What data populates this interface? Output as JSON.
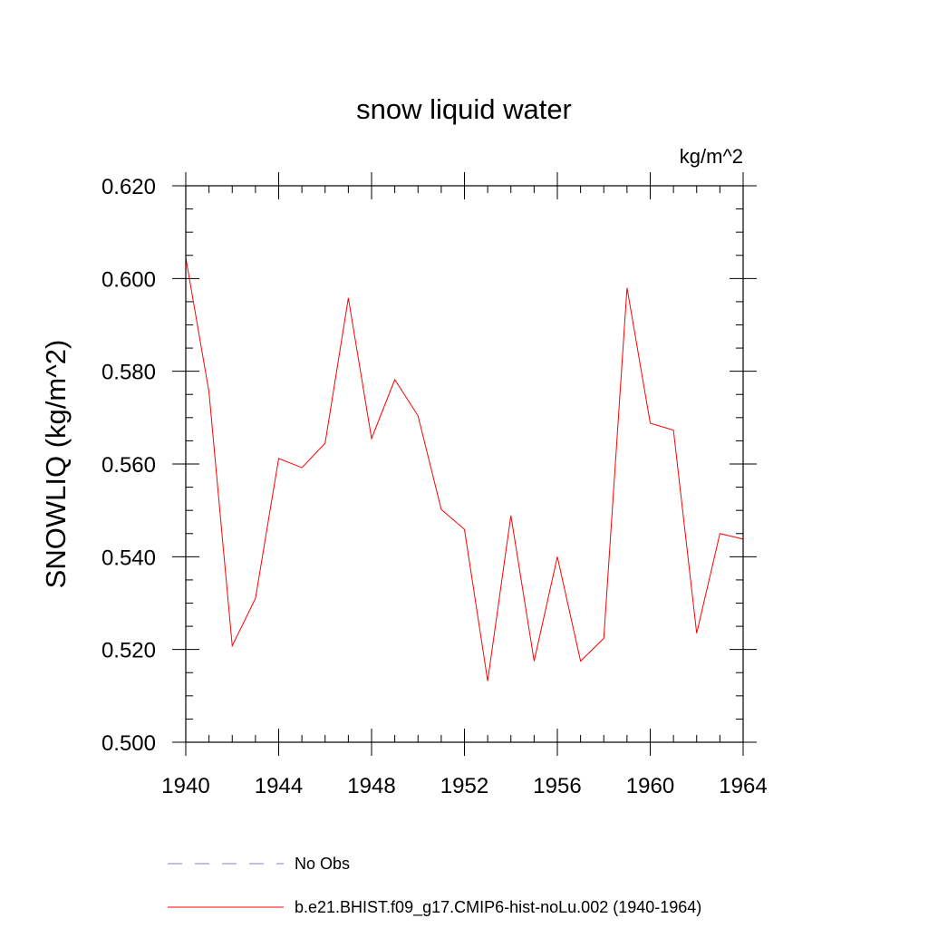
{
  "chart_data": {
    "type": "line",
    "title": "snow liquid water",
    "units_label": "kg/m^2",
    "xlabel": "",
    "ylabel": "SNOWLIQ  (kg/m^2)",
    "xlim": [
      1940,
      1964
    ],
    "ylim": [
      0.5,
      0.62
    ],
    "x_ticks": [
      1940,
      1944,
      1948,
      1952,
      1956,
      1960,
      1964
    ],
    "x_tick_labels": [
      "1940",
      "1944",
      "1948",
      "1952",
      "1956",
      "1960",
      "1964"
    ],
    "y_ticks": [
      0.5,
      0.52,
      0.54,
      0.56,
      0.58,
      0.6,
      0.62
    ],
    "y_tick_labels": [
      "0.500",
      "0.520",
      "0.540",
      "0.560",
      "0.580",
      "0.600",
      "0.620"
    ],
    "grid": false,
    "legend_position": "bottom",
    "series": [
      {
        "name": "b.e21.BHIST.f09_g17.CMIP6-hist-noLu.002 (1940-1964)",
        "color": "#ff0000",
        "style": "solid",
        "x": [
          1940,
          1941,
          1942,
          1943,
          1944,
          1945,
          1946,
          1947,
          1948,
          1949,
          1950,
          1951,
          1952,
          1953,
          1954,
          1955,
          1956,
          1957,
          1958,
          1959,
          1960,
          1961,
          1962,
          1963,
          1964
        ],
        "y": [
          0.6045,
          0.5755,
          0.5208,
          0.531,
          0.5612,
          0.5592,
          0.5645,
          0.5958,
          0.5655,
          0.5782,
          0.5704,
          0.5502,
          0.5459,
          0.5132,
          0.5489,
          0.5175,
          0.54,
          0.5175,
          0.5224,
          0.598,
          0.5688,
          0.5673,
          0.5235,
          0.545,
          0.5438
        ]
      },
      {
        "name": "No Obs",
        "color": "#8080cc",
        "style": "dashed",
        "x": [],
        "y": []
      }
    ]
  }
}
